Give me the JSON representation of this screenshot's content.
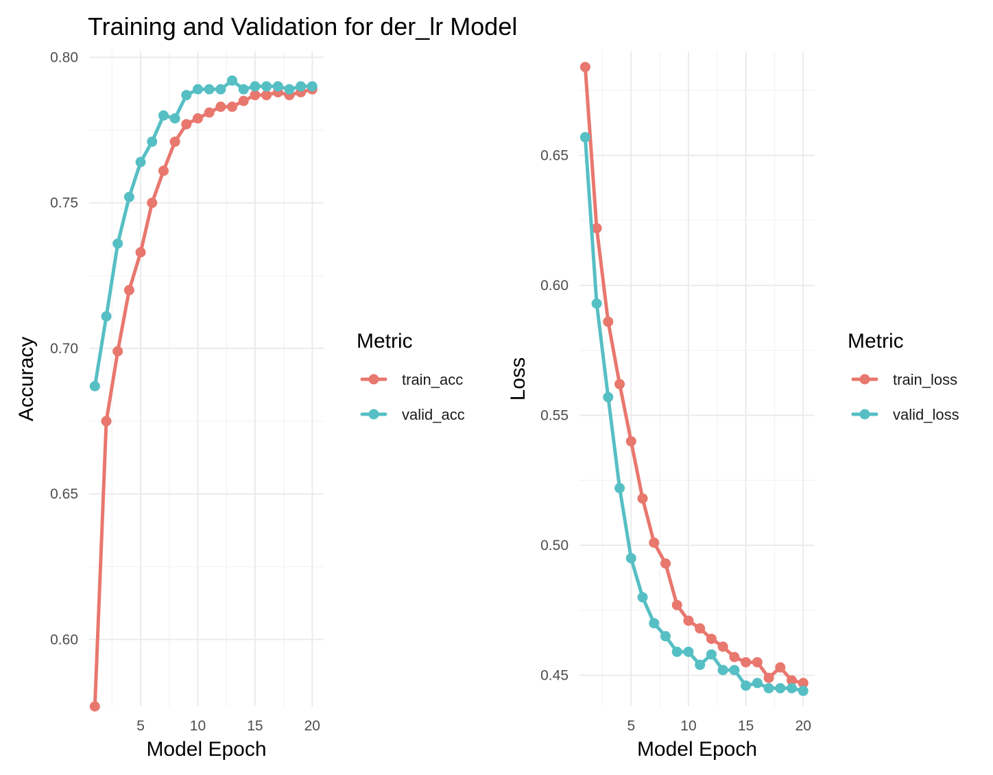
{
  "title": "Training and Validation for der_lr Model",
  "chart_data": [
    {
      "type": "line",
      "xlabel": "Model Epoch",
      "ylabel": "Accuracy",
      "xlim": [
        0.5,
        21
      ],
      "ylim": [
        0.577,
        0.802
      ],
      "xticks": [
        5,
        10,
        15,
        20
      ],
      "yticks": [
        0.6,
        0.65,
        0.7,
        0.75,
        0.8
      ],
      "ytick_labels": [
        "0.60",
        "0.65",
        "0.70",
        "0.75",
        "0.80"
      ],
      "grid": true,
      "legend_title": "Metric",
      "legend_position": "right",
      "x": [
        1,
        2,
        3,
        4,
        5,
        6,
        7,
        8,
        9,
        10,
        11,
        12,
        13,
        14,
        15,
        16,
        17,
        18,
        19,
        20
      ],
      "series": [
        {
          "name": "train_acc",
          "color": "#E8776E",
          "values": [
            0.577,
            0.675,
            0.699,
            0.72,
            0.733,
            0.75,
            0.761,
            0.771,
            0.777,
            0.779,
            0.781,
            0.783,
            0.783,
            0.785,
            0.787,
            0.787,
            0.788,
            0.787,
            0.788,
            0.789
          ]
        },
        {
          "name": "valid_acc",
          "color": "#56BFC4",
          "values": [
            0.687,
            0.711,
            0.736,
            0.752,
            0.764,
            0.771,
            0.78,
            0.779,
            0.787,
            0.789,
            0.789,
            0.789,
            0.792,
            0.789,
            0.79,
            0.79,
            0.79,
            0.789,
            0.79,
            0.79
          ]
        }
      ]
    },
    {
      "type": "line",
      "xlabel": "Model Epoch",
      "ylabel": "Loss",
      "xlim": [
        0.5,
        21
      ],
      "ylim": [
        0.438,
        0.69
      ],
      "xticks": [
        5,
        10,
        15,
        20
      ],
      "yticks": [
        0.45,
        0.5,
        0.55,
        0.6,
        0.65
      ],
      "ytick_labels": [
        "0.45",
        "0.50",
        "0.55",
        "0.60",
        "0.65"
      ],
      "grid": true,
      "legend_title": "Metric",
      "legend_position": "right",
      "x": [
        1,
        2,
        3,
        4,
        5,
        6,
        7,
        8,
        9,
        10,
        11,
        12,
        13,
        14,
        15,
        16,
        17,
        18,
        19,
        20
      ],
      "series": [
        {
          "name": "train_loss",
          "color": "#E8776E",
          "values": [
            0.684,
            0.622,
            0.586,
            0.562,
            0.54,
            0.518,
            0.501,
            0.493,
            0.477,
            0.471,
            0.468,
            0.464,
            0.461,
            0.457,
            0.455,
            0.455,
            0.449,
            0.453,
            0.448,
            0.447
          ]
        },
        {
          "name": "valid_loss",
          "color": "#56BFC4",
          "values": [
            0.657,
            0.593,
            0.557,
            0.522,
            0.495,
            0.48,
            0.47,
            0.465,
            0.459,
            0.459,
            0.454,
            0.458,
            0.452,
            0.452,
            0.446,
            0.447,
            0.445,
            0.445,
            0.445,
            0.444
          ]
        }
      ]
    }
  ]
}
